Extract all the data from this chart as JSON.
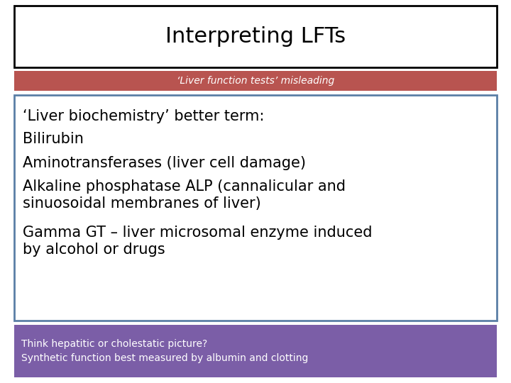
{
  "title": "Interpreting LFTs",
  "subtitle": "‘Liver function tests’ misleading",
  "subtitle_bg": "#b85450",
  "subtitle_text_color": "#ffffff",
  "main_lines": [
    "‘Liver biochemistry’ better term:",
    "Bilirubin",
    "Aminotransferases (liver cell damage)",
    "Alkaline phosphatase ALP (cannalicular and\nsinuosoidal membranes of liver)",
    "Gamma GT – liver microsomal enzyme induced\nby alcohol or drugs"
  ],
  "main_box_border": "#5b7fa6",
  "footer_lines": [
    "Think hepatitic or cholestatic picture?",
    "Synthetic function best measured by albumin and clotting"
  ],
  "footer_bg": "#7b5ea7",
  "footer_text_color": "#ffffff",
  "bg_color": "#ffffff",
  "title_fontsize": 22,
  "subtitle_fontsize": 10,
  "main_fontsize": 15,
  "footer_fontsize": 10
}
